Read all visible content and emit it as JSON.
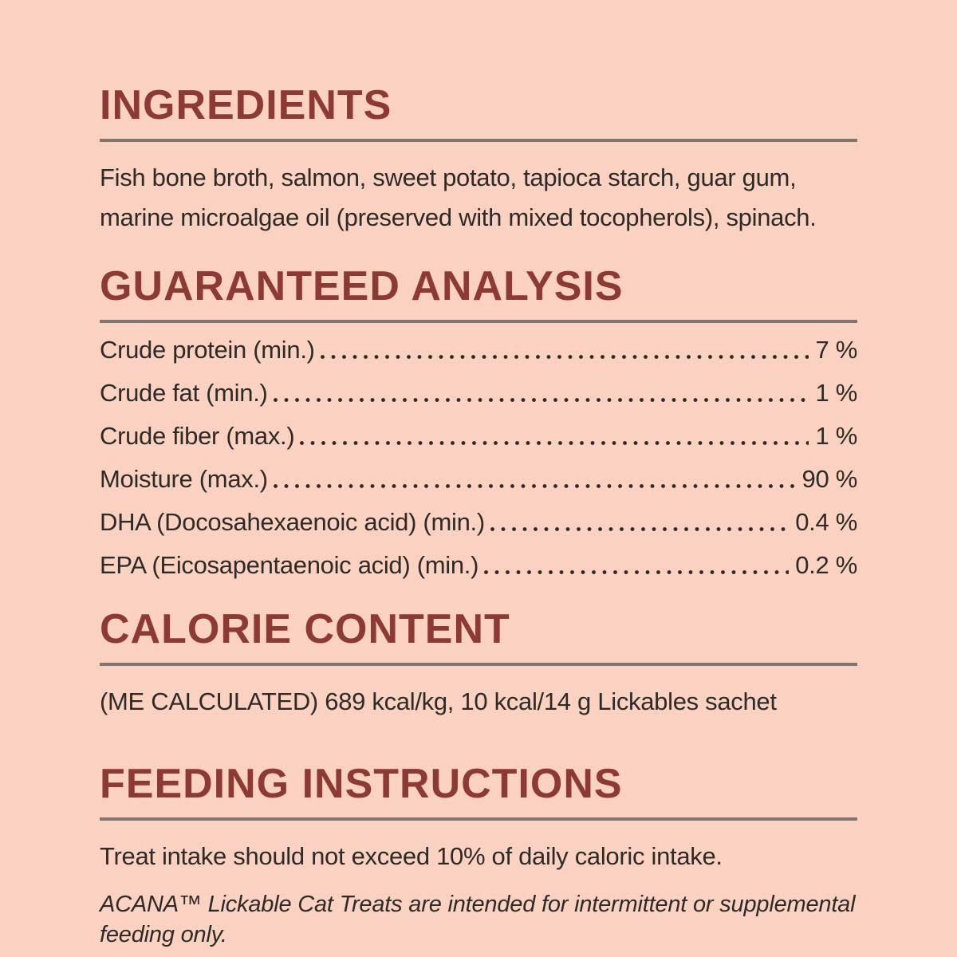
{
  "colors": {
    "background": "#fbd2c2",
    "heading": "#8d3a34",
    "body_text": "#2e2a28",
    "rule": "#7f7672"
  },
  "sections": {
    "ingredients": {
      "title": "INGREDIENTS",
      "body": "Fish bone broth, salmon, sweet potato, tapioca starch, guar gum, marine microalgae oil (preserved with mixed tocopherols), spinach."
    },
    "guaranteed_analysis": {
      "title": "GUARANTEED ANALYSIS",
      "rows": [
        {
          "label": "Crude protein (min.)",
          "value": "7 %"
        },
        {
          "label": "Crude fat (min.)",
          "value": "1 %"
        },
        {
          "label": "Crude fiber (max.)",
          "value": "1 %"
        },
        {
          "label": "Moisture (max.)",
          "value": "90 %"
        },
        {
          "label": "DHA (Docosahexaenoic acid) (min.)",
          "value": "0.4 %"
        },
        {
          "label": "EPA (Eicosapentaenoic acid) (min.)",
          "value": "0.2 %"
        }
      ]
    },
    "calorie_content": {
      "title": "CALORIE CONTENT",
      "body": "(ME CALCULATED) 689 kcal/kg, 10 kcal/14 g Lickables sachet"
    },
    "feeding_instructions": {
      "title": "FEEDING INSTRUCTIONS",
      "body": "Treat intake should not exceed 10% of daily caloric intake.",
      "note": "ACANA™ Lickable Cat Treats are intended for intermittent or supplemental feeding only."
    }
  }
}
